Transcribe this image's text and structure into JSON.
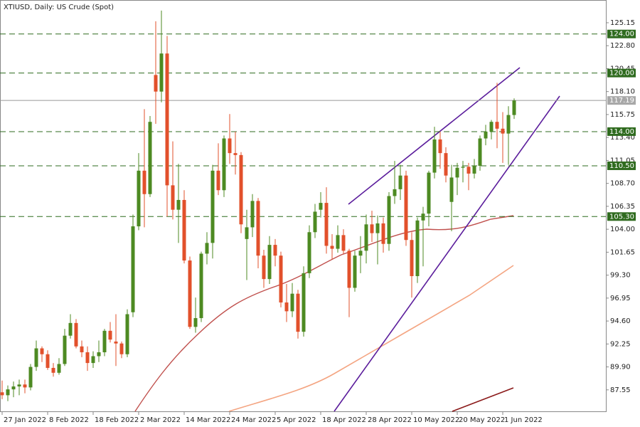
{
  "chart_data": {
    "type": "candlestick",
    "title": "XTIUSD, Daily:  US Crude (Spot)",
    "categories": [
      "27 Jan 2022",
      null,
      null,
      null,
      null,
      null,
      null,
      null,
      "8 Feb 2022",
      null,
      null,
      null,
      null,
      null,
      null,
      null,
      "18 Feb 2022",
      null,
      null,
      null,
      null,
      null,
      null,
      null,
      "2 Mar 2022",
      null,
      null,
      null,
      null,
      null,
      null,
      null,
      "14 Mar 2022",
      null,
      null,
      null,
      null,
      null,
      null,
      null,
      "24 Mar 2022",
      null,
      null,
      null,
      null,
      null,
      null,
      null,
      "5 Apr 2022",
      null,
      null,
      null,
      null,
      null,
      null,
      null,
      "18 Apr 2022",
      null,
      null,
      null,
      null,
      null,
      null,
      null,
      "28 Apr 2022",
      null,
      null,
      null,
      null,
      null,
      null,
      null,
      "10 May 2022",
      null,
      null,
      null,
      null,
      null,
      null,
      null,
      "20 May 2022",
      null,
      null,
      null,
      null,
      null,
      null,
      null,
      "1 Jun 2022",
      null,
      null
    ],
    "open": [
      87.3,
      87.0,
      87.6,
      87.9,
      88.1,
      87.8,
      89.9,
      91.8,
      91.2,
      89.8,
      89.3,
      90.2,
      93.1,
      94.4,
      92.0,
      91.4,
      90.3,
      91.0,
      91.4,
      93.6,
      92.5,
      92.3,
      91.2,
      95.5,
      104.3,
      110.0,
      107.6,
      119.8,
      118.1,
      122.0,
      108.5,
      106.0,
      107.0,
      100.8,
      94.0,
      94.9,
      101.5,
      102.6,
      110.0,
      108.0,
      113.3,
      111.8,
      111.6,
      103.0,
      104.2,
      106.9,
      101.3,
      98.9,
      102.4,
      101.3,
      96.5,
      95.6,
      97.4,
      93.5,
      99.5,
      103.7,
      106.0,
      106.7,
      102.3,
      102.0,
      103.4,
      101.8,
      98.0,
      101.3,
      101.8,
      104.5,
      103.6,
      104.6,
      102.5,
      107.4,
      108.1,
      109.5,
      102.9,
      99.2,
      104.9,
      105.6,
      109.8,
      113.2,
      111.8,
      106.8,
      109.3,
      110.3,
      110.4,
      109.7,
      110.5,
      113.3,
      114.0,
      115.0,
      114.3,
      113.8,
      115.7
    ],
    "high": [
      88.5,
      88.0,
      88.4,
      88.6,
      88.6,
      90.2,
      92.6,
      92.0,
      91.6,
      90.3,
      90.8,
      93.8,
      95.3,
      94.8,
      92.6,
      92.0,
      91.5,
      92.6,
      93.8,
      94.5,
      95.3,
      92.5,
      95.8,
      105.5,
      111.8,
      116.3,
      115.6,
      125.3,
      126.4,
      123.8,
      113.0,
      110.7,
      108.0,
      101.2,
      97.0,
      101.7,
      103.7,
      110.6,
      112.8,
      113.6,
      115.8,
      114.0,
      111.9,
      106.0,
      107.6,
      107.2,
      101.9,
      103.3,
      103.0,
      101.7,
      98.4,
      98.5,
      97.8,
      100.2,
      104.4,
      106.6,
      107.8,
      108.3,
      103.5,
      104.4,
      104.0,
      102.0,
      101.8,
      103.3,
      105.5,
      105.9,
      105.4,
      105.2,
      107.8,
      111.0,
      110.6,
      110.0,
      103.7,
      105.2,
      106.3,
      110.0,
      114.5,
      114.0,
      112.4,
      110.6,
      110.8,
      111.0,
      110.8,
      111.2,
      113.6,
      114.7,
      115.2,
      119.0,
      116.0,
      116.6,
      117.4
    ],
    "low": [
      86.6,
      86.4,
      86.8,
      87.0,
      87.2,
      87.5,
      89.5,
      90.4,
      89.6,
      88.9,
      89.1,
      90.0,
      92.8,
      91.8,
      90.9,
      89.5,
      89.8,
      90.4,
      91.0,
      92.4,
      90.0,
      90.8,
      90.9,
      95.0,
      103.9,
      104.2,
      107.3,
      114.8,
      117.0,
      105.3,
      105.0,
      102.6,
      100.5,
      93.8,
      93.4,
      94.5,
      100.4,
      101.0,
      107.5,
      107.3,
      110.7,
      109.6,
      103.6,
      98.8,
      103.2,
      100.0,
      98.0,
      98.4,
      100.2,
      96.0,
      94.5,
      95.0,
      92.8,
      93.0,
      99.0,
      103.1,
      105.2,
      101.5,
      100.9,
      101.6,
      101.5,
      95.0,
      97.6,
      99.5,
      100.5,
      102.7,
      100.4,
      101.6,
      101.8,
      106.6,
      107.0,
      102.3,
      97.0,
      98.5,
      100.2,
      104.3,
      109.2,
      110.2,
      108.8,
      103.8,
      107.5,
      108.8,
      108.0,
      109.2,
      110.0,
      112.6,
      113.2,
      112.3,
      110.8,
      110.6,
      115.3
    ],
    "close": [
      87.0,
      87.6,
      87.9,
      88.1,
      87.8,
      89.9,
      91.8,
      91.2,
      89.8,
      89.3,
      90.2,
      93.1,
      94.4,
      92.0,
      91.4,
      90.3,
      91.0,
      91.4,
      93.6,
      92.7,
      92.3,
      91.2,
      95.3,
      104.3,
      110.0,
      107.6,
      115.0,
      118.1,
      122.0,
      108.5,
      106.0,
      107.0,
      100.8,
      94.0,
      94.9,
      101.5,
      102.6,
      110.0,
      108.0,
      113.3,
      111.8,
      111.6,
      104.5,
      104.2,
      106.9,
      101.3,
      98.9,
      102.4,
      101.3,
      96.5,
      95.6,
      97.4,
      93.5,
      99.5,
      103.7,
      105.8,
      106.7,
      102.3,
      102.0,
      103.4,
      101.8,
      98.0,
      101.3,
      101.8,
      104.5,
      103.6,
      104.6,
      102.5,
      107.4,
      108.1,
      109.5,
      102.9,
      99.2,
      104.9,
      105.6,
      109.8,
      113.2,
      111.8,
      109.5,
      109.3,
      110.3,
      110.4,
      109.7,
      110.5,
      113.3,
      114.0,
      115.0,
      114.3,
      113.8,
      115.7,
      117.19
    ],
    "up_color": "#4d8a22",
    "down_color": "#e2502b",
    "ylim": [
      85.35,
      127.48
    ],
    "yticks": [
      125.15,
      {
        "value": 122.8,
        "label": "122.80"
      },
      120.45,
      {
        "value": 118.1,
        "label": "118.10"
      },
      115.75,
      {
        "value": 113.4,
        "label": "113.40"
      },
      111.05,
      {
        "value": 108.7,
        "label": "108.70"
      },
      106.35,
      {
        "value": 104,
        "label": "104.00"
      },
      101.65,
      {
        "value": 99.3,
        "label": "99.30"
      },
      96.95,
      {
        "value": 94.6,
        "label": "94.60"
      },
      92.25,
      {
        "value": 89.9,
        "label": "89.90"
      },
      87.55
    ],
    "levels": [
      {
        "value": 124,
        "label": "124.00"
      },
      {
        "value": 120,
        "label": "120.00"
      },
      {
        "value": 114,
        "label": "114.00"
      },
      {
        "value": 110.5,
        "label": "110.50"
      },
      {
        "value": 105.3,
        "label": "105.30"
      }
    ],
    "level_color": "#2f6b1f",
    "last_price": 117.19
  }
}
